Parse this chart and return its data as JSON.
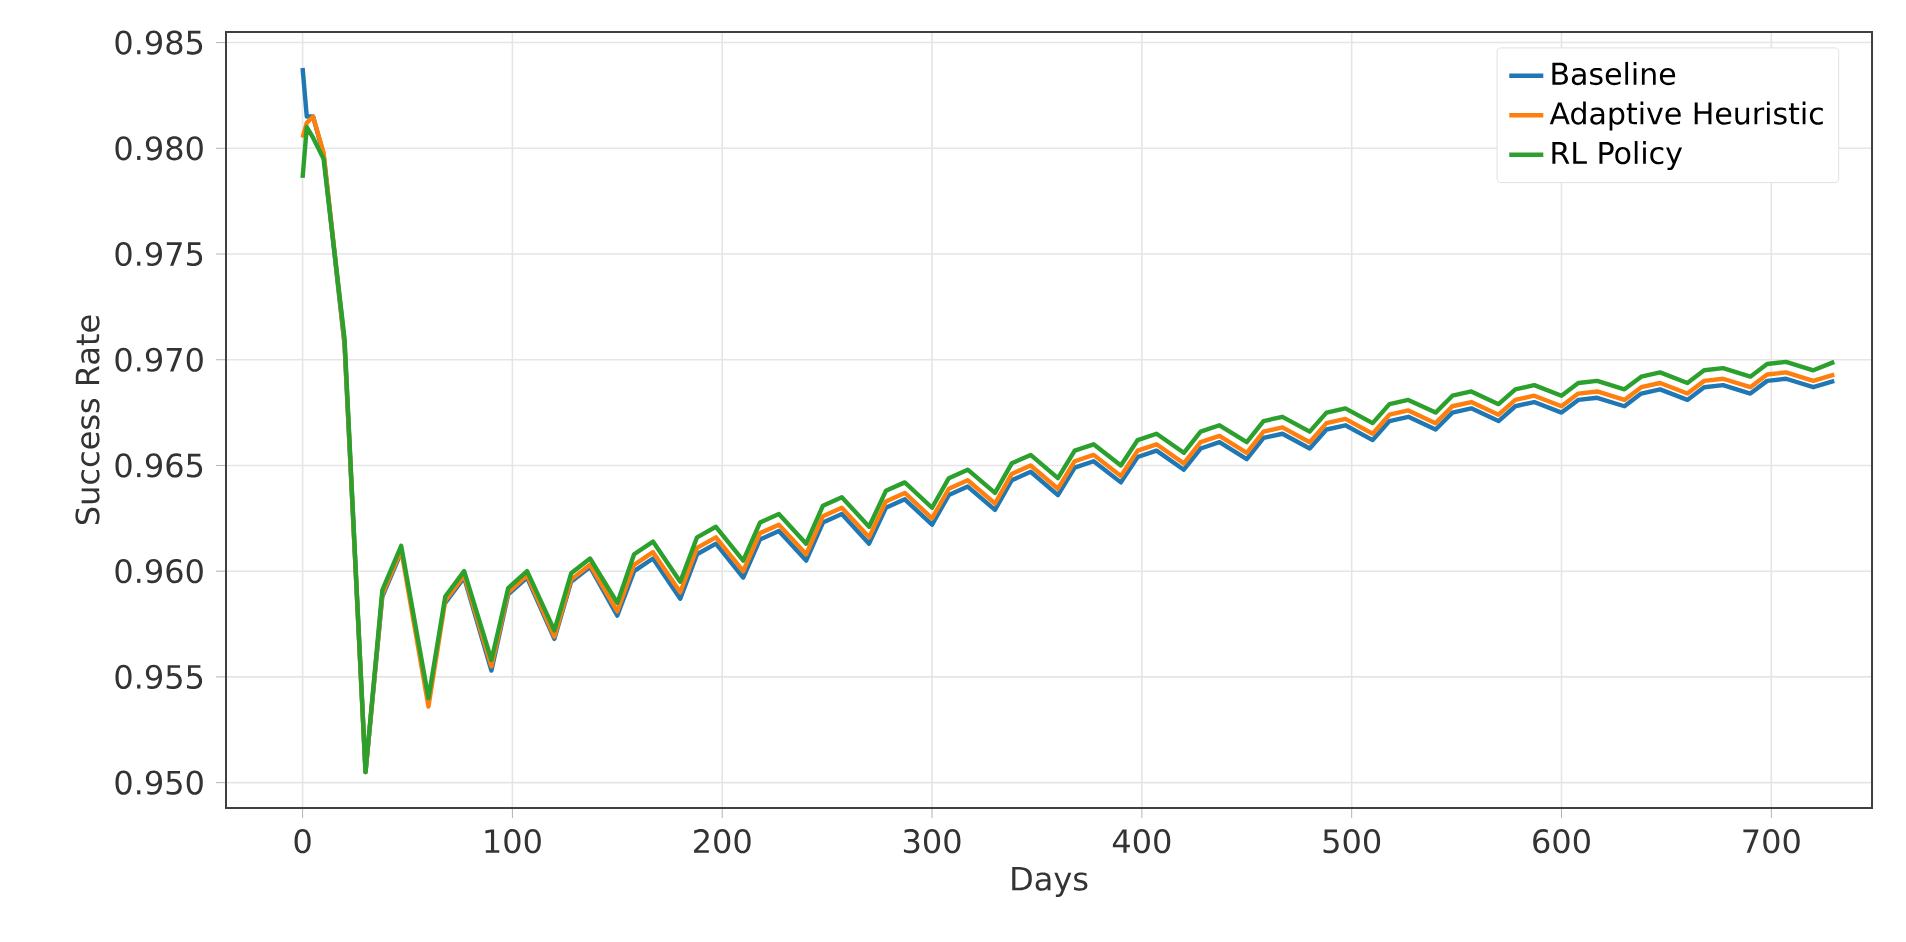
{
  "chart_data": {
    "type": "line",
    "xlabel": "Days",
    "ylabel": "Success Rate",
    "x": [
      0,
      2,
      5,
      10,
      20,
      30,
      38,
      47,
      60,
      68,
      77,
      90,
      98,
      107,
      120,
      128,
      137,
      150,
      158,
      167,
      180,
      188,
      197,
      210,
      218,
      227,
      240,
      248,
      257,
      270,
      278,
      287,
      300,
      308,
      317,
      330,
      338,
      347,
      360,
      368,
      377,
      390,
      398,
      407,
      420,
      428,
      437,
      450,
      458,
      467,
      480,
      488,
      497,
      510,
      518,
      527,
      540,
      548,
      557,
      570,
      578,
      587,
      600,
      608,
      617,
      630,
      638,
      647,
      660,
      668,
      677,
      690,
      698,
      707,
      720,
      730
    ],
    "series": [
      {
        "name": "Baseline",
        "color": "#1f77b4",
        "values": [
          0.9838,
          0.9815,
          0.9815,
          0.9797,
          0.9707,
          0.9505,
          0.9588,
          0.9609,
          null,
          0.9585,
          0.9597,
          0.9553,
          0.9589,
          0.9597,
          0.9568,
          0.9595,
          0.9602,
          0.9579,
          0.96,
          0.9606,
          0.9587,
          0.9608,
          0.9613,
          0.9597,
          0.9615,
          0.9619,
          0.9605,
          0.9623,
          0.9627,
          0.9613,
          0.963,
          0.9634,
          0.9622,
          0.9636,
          0.964,
          0.9629,
          0.9643,
          0.9647,
          0.9636,
          0.9649,
          0.9652,
          0.9642,
          0.9654,
          0.9657,
          0.9648,
          0.9658,
          0.9661,
          0.9653,
          0.9663,
          0.9665,
          0.9658,
          0.9667,
          0.9669,
          0.9662,
          0.9671,
          0.9673,
          0.9667,
          0.9675,
          0.9677,
          0.9671,
          0.9678,
          0.968,
          0.9675,
          0.9681,
          0.9682,
          0.9678,
          0.9684,
          0.9686,
          0.9681,
          0.9687,
          0.9688,
          0.9684,
          0.969,
          0.9691,
          0.9687,
          0.969
        ]
      },
      {
        "name": "Adaptive Heuristic",
        "color": "#ff7f0e",
        "values": [
          0.9805,
          0.9812,
          0.9815,
          0.9798,
          0.9708,
          0.9505,
          0.9589,
          0.961,
          0.9536,
          0.9586,
          0.9598,
          0.9555,
          0.959,
          0.9598,
          0.9569,
          0.9596,
          0.9603,
          0.9581,
          0.9603,
          0.9609,
          0.959,
          0.9611,
          0.9616,
          0.96,
          0.9618,
          0.9622,
          0.9608,
          0.9626,
          0.963,
          0.9616,
          0.9633,
          0.9637,
          0.9625,
          0.9639,
          0.9643,
          0.9632,
          0.9646,
          0.965,
          0.9639,
          0.9652,
          0.9655,
          0.9645,
          0.9657,
          0.966,
          0.9651,
          0.9661,
          0.9664,
          0.9656,
          0.9666,
          0.9668,
          0.9661,
          0.967,
          0.9672,
          0.9665,
          0.9674,
          0.9676,
          0.967,
          0.9678,
          0.968,
          0.9674,
          0.9681,
          0.9683,
          0.9678,
          0.9684,
          0.9685,
          0.9681,
          0.9687,
          0.9689,
          0.9684,
          0.969,
          0.9691,
          0.9687,
          0.9693,
          0.9694,
          0.969,
          0.9693
        ]
      },
      {
        "name": "RL Policy",
        "color": "#2ca02c",
        "values": [
          0.9786,
          0.981,
          0.9805,
          0.9795,
          0.971,
          0.9505,
          0.9591,
          0.9612,
          0.954,
          0.9588,
          0.96,
          0.9558,
          0.9592,
          0.96,
          0.9572,
          0.9599,
          0.9606,
          0.9585,
          0.9608,
          0.9614,
          0.9595,
          0.9616,
          0.9621,
          0.9605,
          0.9623,
          0.9627,
          0.9613,
          0.9631,
          0.9635,
          0.9621,
          0.9638,
          0.9642,
          0.963,
          0.9644,
          0.9648,
          0.9637,
          0.9651,
          0.9655,
          0.9644,
          0.9657,
          0.966,
          0.965,
          0.9662,
          0.9665,
          0.9656,
          0.9666,
          0.9669,
          0.9661,
          0.9671,
          0.9673,
          0.9666,
          0.9675,
          0.9677,
          0.967,
          0.9679,
          0.9681,
          0.9675,
          0.9683,
          0.9685,
          0.9679,
          0.9686,
          0.9688,
          0.9683,
          0.9689,
          0.969,
          0.9686,
          0.9692,
          0.9694,
          0.9689,
          0.9695,
          0.9696,
          0.9692,
          0.9698,
          0.9699,
          0.9695,
          0.9699
        ]
      }
    ],
    "xlim": [
      -36.5,
      748
    ],
    "ylim": [
      0.9488,
      0.9855
    ],
    "xticks": [
      0,
      100,
      200,
      300,
      400,
      500,
      600,
      700
    ],
    "yticks": [
      {
        "value": 0.95,
        "label": "0.950"
      },
      {
        "value": 0.955,
        "label": "0.955"
      },
      {
        "value": 0.96,
        "label": "0.960"
      },
      {
        "value": 0.965,
        "label": "0.965"
      },
      {
        "value": 0.97,
        "label": "0.970"
      },
      {
        "value": 0.975,
        "label": "0.975"
      },
      {
        "value": 0.98,
        "label": "0.980"
      },
      {
        "value": 0.985,
        "label": "0.985"
      }
    ],
    "grid": true,
    "legend": "top right",
    "marker": "none",
    "line_style": "solid"
  }
}
